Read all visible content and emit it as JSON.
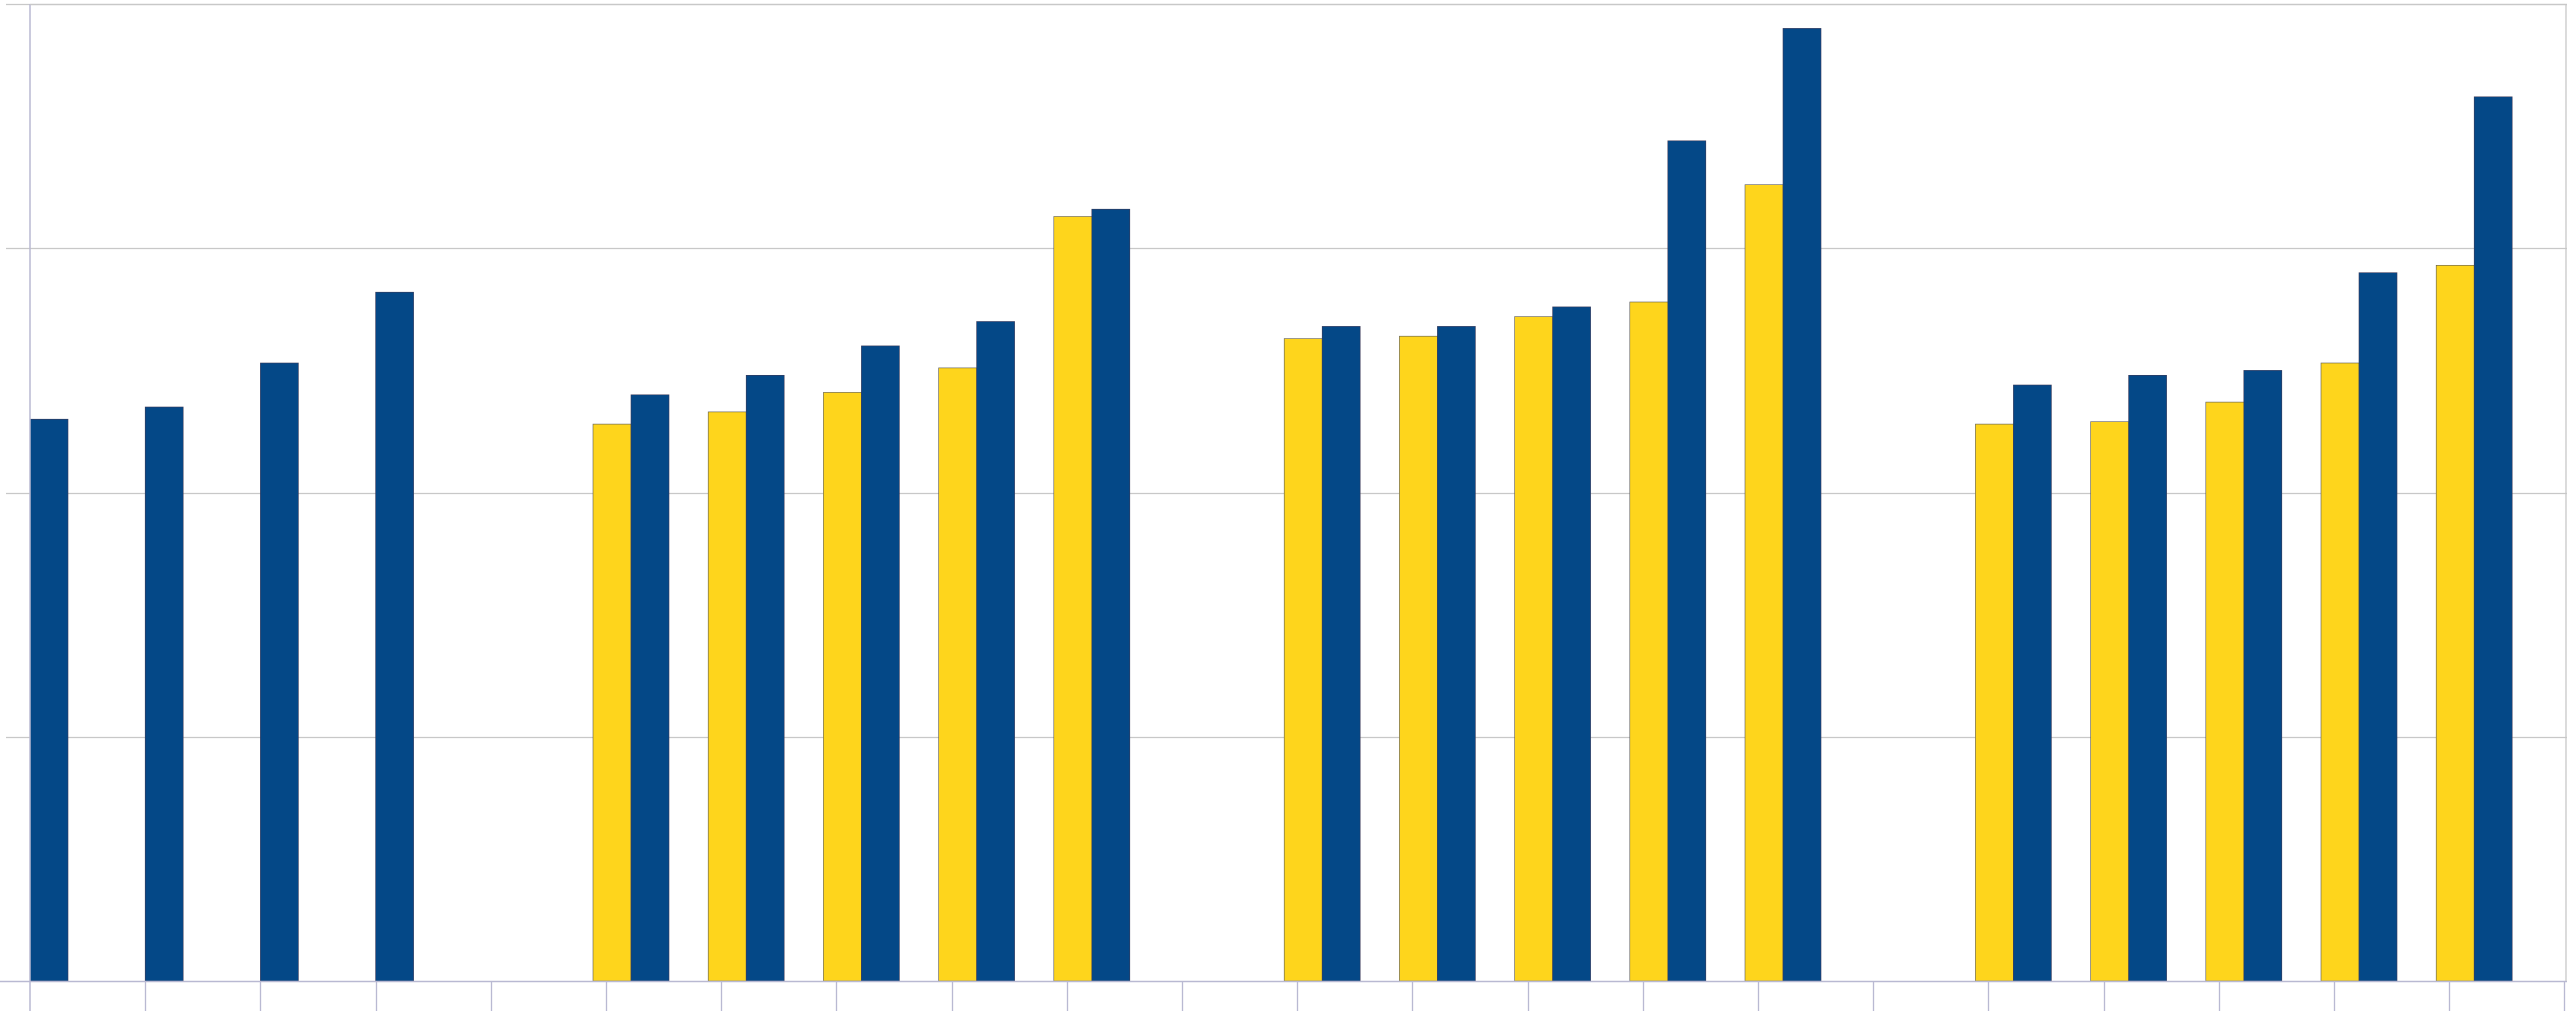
{
  "chart_data": {
    "type": "bar",
    "ylim": [
      0,
      4
    ],
    "y_gridlines": [
      1,
      2,
      3,
      4
    ],
    "grid": true,
    "legend": "none",
    "groups": [
      {
        "name": "",
        "series": [
          {
            "name": "",
            "color": "#fed51c",
            "values": [
              null,
              null,
              null,
              null
            ]
          },
          {
            "name": "",
            "color": "#044887",
            "values": [
              2.3,
              2.35,
              2.53,
              2.82
            ]
          }
        ]
      },
      {
        "name": "",
        "series": [
          {
            "name": "",
            "color": "#fed51c",
            "values": [
              2.28,
              2.33,
              2.41,
              2.51,
              3.13
            ]
          },
          {
            "name": "",
            "color": "#044887",
            "values": [
              2.4,
              2.48,
              2.6,
              2.7,
              3.16
            ]
          }
        ]
      },
      {
        "name": "",
        "series": [
          {
            "name": "",
            "color": "#fed51c",
            "values": [
              2.63,
              2.64,
              2.72,
              2.78,
              3.26
            ]
          },
          {
            "name": "",
            "color": "#044887",
            "values": [
              2.68,
              2.68,
              2.76,
              3.44,
              3.9
            ]
          }
        ]
      },
      {
        "name": "",
        "series": [
          {
            "name": "",
            "color": "#fed51c",
            "values": [
              2.28,
              2.29,
              2.37,
              2.53,
              2.93
            ]
          },
          {
            "name": "",
            "color": "#044887",
            "values": [
              2.44,
              2.48,
              2.5,
              2.9,
              3.62
            ]
          }
        ]
      }
    ],
    "colors": {
      "yellow_series": "#fed51c",
      "blue_series": "#044887",
      "grid": "#c8c8c8",
      "axis": "#b9b9d2"
    }
  }
}
